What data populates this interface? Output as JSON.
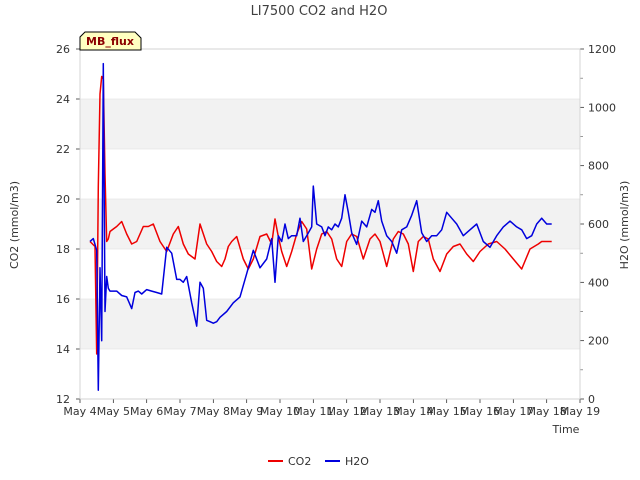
{
  "chart_data": {
    "type": "line",
    "title": "LI7500 CO2 and H2O",
    "site_label": "MB_flux",
    "xlabel": "Time",
    "ylabel_left": "CO2 (mmol/m3)",
    "ylabel_right": "H2O (mmol/m3)",
    "x_range": [
      4,
      19
    ],
    "x_ticks": [
      4,
      5,
      6,
      7,
      8,
      9,
      10,
      11,
      12,
      13,
      14,
      15,
      16,
      17,
      18,
      19
    ],
    "x_tick_labels": [
      "May 4",
      "May 5",
      "May 6",
      "May 7",
      "May 8",
      "May 9",
      "May 10",
      "May 11",
      "May 12",
      "May 13",
      "May 14",
      "May 15",
      "May 16",
      "May 17",
      "May 18",
      "May 19"
    ],
    "ylim_left": [
      12,
      26
    ],
    "yticks_left": [
      12,
      14,
      16,
      18,
      20,
      22,
      24,
      26
    ],
    "ylim_right": [
      0,
      1200
    ],
    "yticks_right": [
      0,
      200,
      400,
      600,
      800,
      1000,
      1200
    ],
    "grid": "horizontal bands",
    "legend": "bottom-center",
    "series": [
      {
        "name": "CO2",
        "color": "#ee0000",
        "axis": "left",
        "x": [
          4.3,
          4.45,
          4.5,
          4.55,
          4.6,
          4.65,
          4.7,
          4.75,
          4.8,
          4.85,
          4.9,
          5.0,
          5.1,
          5.25,
          5.4,
          5.55,
          5.7,
          5.9,
          6.05,
          6.2,
          6.4,
          6.6,
          6.8,
          6.95,
          7.1,
          7.25,
          7.45,
          7.6,
          7.8,
          7.95,
          8.1,
          8.25,
          8.35,
          8.45,
          8.55,
          8.7,
          8.9,
          9.05,
          9.2,
          9.4,
          9.6,
          9.75,
          9.85,
          9.95,
          10.05,
          10.2,
          10.35,
          10.5,
          10.65,
          10.8,
          10.95,
          11.1,
          11.25,
          11.4,
          11.55,
          11.7,
          11.85,
          12.0,
          12.15,
          12.3,
          12.5,
          12.7,
          12.85,
          13.0,
          13.2,
          13.4,
          13.55,
          13.7,
          13.85,
          14.0,
          14.15,
          14.3,
          14.45,
          14.6,
          14.8,
          15.0,
          15.2,
          15.4,
          15.6,
          15.8,
          16.0,
          16.25,
          16.5,
          16.75,
          17.0,
          17.25,
          17.5,
          17.75,
          17.85,
          18.0,
          18.15
        ],
        "values": [
          18.3,
          18.1,
          13.8,
          20.5,
          24.2,
          24.9,
          24.8,
          21.0,
          18.3,
          18.4,
          18.7,
          18.8,
          18.9,
          19.1,
          18.6,
          18.2,
          18.3,
          18.9,
          18.9,
          19.0,
          18.3,
          17.9,
          18.6,
          18.9,
          18.2,
          17.8,
          17.6,
          19.0,
          18.2,
          17.9,
          17.5,
          17.3,
          17.6,
          18.1,
          18.3,
          18.5,
          17.6,
          17.2,
          17.6,
          18.5,
          18.6,
          18.2,
          19.2,
          18.5,
          17.9,
          17.3,
          17.9,
          18.6,
          19.1,
          18.8,
          17.2,
          18.0,
          18.6,
          18.7,
          18.4,
          17.6,
          17.3,
          18.3,
          18.6,
          18.5,
          17.6,
          18.4,
          18.6,
          18.3,
          17.3,
          18.4,
          18.7,
          18.6,
          18.2,
          17.1,
          18.3,
          18.5,
          18.4,
          17.6,
          17.1,
          17.8,
          18.1,
          18.2,
          17.8,
          17.5,
          17.9,
          18.2,
          18.3,
          18.0,
          17.6,
          17.2,
          18.0,
          18.2,
          18.3,
          18.3,
          18.3
        ]
      },
      {
        "name": "H2O",
        "color": "#0000dd",
        "axis": "right",
        "x": [
          4.3,
          4.4,
          4.5,
          4.55,
          4.6,
          4.65,
          4.7,
          4.75,
          4.8,
          4.85,
          4.9,
          5.0,
          5.1,
          5.25,
          5.4,
          5.55,
          5.65,
          5.75,
          5.85,
          6.0,
          6.15,
          6.3,
          6.45,
          6.6,
          6.75,
          6.9,
          7.0,
          7.1,
          7.2,
          7.35,
          7.5,
          7.6,
          7.7,
          7.8,
          7.9,
          8.0,
          8.1,
          8.2,
          8.4,
          8.6,
          8.8,
          9.0,
          9.2,
          9.4,
          9.6,
          9.75,
          9.85,
          9.95,
          10.05,
          10.15,
          10.25,
          10.35,
          10.5,
          10.6,
          10.7,
          10.8,
          10.95,
          11.0,
          11.1,
          11.25,
          11.35,
          11.45,
          11.55,
          11.65,
          11.75,
          11.85,
          11.95,
          12.05,
          12.15,
          12.3,
          12.45,
          12.6,
          12.75,
          12.85,
          12.95,
          13.05,
          13.2,
          13.35,
          13.5,
          13.65,
          13.8,
          13.95,
          14.1,
          14.25,
          14.4,
          14.55,
          14.7,
          14.85,
          15.0,
          15.15,
          15.3,
          15.5,
          15.7,
          15.9,
          16.1,
          16.3,
          16.5,
          16.7,
          16.9,
          17.1,
          17.25,
          17.4,
          17.55,
          17.7,
          17.85,
          18.0,
          18.15
        ],
        "values": [
          540,
          550,
          510,
          30,
          450,
          200,
          1150,
          300,
          420,
          380,
          370,
          370,
          370,
          355,
          350,
          310,
          365,
          370,
          360,
          375,
          370,
          365,
          360,
          520,
          500,
          410,
          410,
          400,
          420,
          330,
          250,
          400,
          380,
          270,
          265,
          260,
          265,
          280,
          300,
          330,
          350,
          430,
          510,
          450,
          480,
          550,
          400,
          560,
          540,
          600,
          550,
          560,
          560,
          620,
          540,
          560,
          590,
          730,
          600,
          590,
          560,
          590,
          580,
          600,
          590,
          620,
          700,
          640,
          570,
          530,
          610,
          590,
          650,
          640,
          680,
          610,
          560,
          540,
          500,
          580,
          590,
          630,
          680,
          570,
          540,
          560,
          560,
          580,
          640,
          620,
          600,
          560,
          580,
          600,
          540,
          520,
          560,
          590,
          610,
          590,
          580,
          550,
          560,
          600,
          620,
          600,
          600
        ]
      }
    ]
  }
}
